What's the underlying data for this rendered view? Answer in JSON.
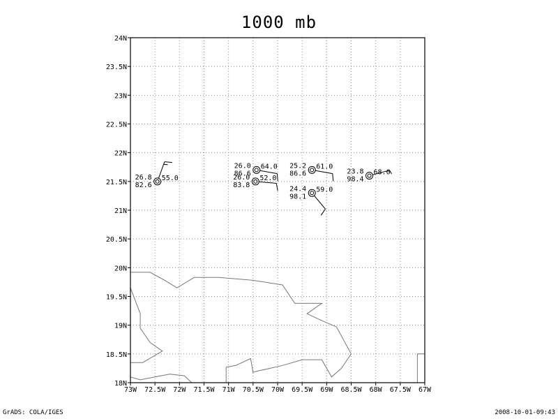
{
  "title": "1000 mb",
  "footer": {
    "left": "GrADS: COLA/IGES",
    "right": "2008-10-01-09:43"
  },
  "axes": {
    "x_ticks": [
      "73W",
      "72.5W",
      "72W",
      "71.5W",
      "71W",
      "70.5W",
      "70W",
      "69.5W",
      "69W",
      "68.5W",
      "68W",
      "67.5W",
      "67W"
    ],
    "y_ticks": [
      "24N",
      "23.5N",
      "23N",
      "22.5N",
      "22N",
      "21.5N",
      "21N",
      "20.5N",
      "20N",
      "19.5N",
      "19N",
      "18.5N",
      "18N"
    ],
    "lon_range": [
      -73,
      -67
    ],
    "lat_range": [
      18,
      24
    ],
    "grid": "dotted"
  },
  "stations": [
    {
      "lon": -72.45,
      "lat": 21.5,
      "temp": "26.8",
      "dewpt": "82.6",
      "pressure": "55.0",
      "wind_dir": 20,
      "wind_kt": 15
    },
    {
      "lon": -70.43,
      "lat": 21.7,
      "temp": "26.0",
      "dewpt": "86.6",
      "pressure": "64.0",
      "wind_dir": 100,
      "wind_kt": 10
    },
    {
      "lon": -70.45,
      "lat": 21.5,
      "temp": "26.0",
      "dewpt": "83.8",
      "pressure": "52.0",
      "wind_dir": 95,
      "wind_kt": 10
    },
    {
      "lon": -69.3,
      "lat": 21.7,
      "temp": "25.2",
      "dewpt": "86.6",
      "pressure": "61.0",
      "wind_dir": 100,
      "wind_kt": 10
    },
    {
      "lon": -69.3,
      "lat": 21.3,
      "temp": "24.4",
      "dewpt": "98.1",
      "pressure": "59.0",
      "wind_dir": 140,
      "wind_kt": 10
    },
    {
      "lon": -68.13,
      "lat": 21.6,
      "temp": "23.8",
      "dewpt": "98.4",
      "pressure": "68.0",
      "wind_dir": 75,
      "wind_kt": 5
    }
  ],
  "coastlines": [
    [
      [
        -73,
        19.92
      ],
      [
        -72.6,
        19.92
      ],
      [
        -72.3,
        19.78
      ],
      [
        -72.05,
        19.65
      ],
      [
        -71.7,
        19.83
      ],
      [
        -71.2,
        19.83
      ],
      [
        -70.5,
        19.78
      ],
      [
        -69.9,
        19.7
      ],
      [
        -69.65,
        19.38
      ],
      [
        -69.1,
        19.38
      ],
      [
        -69.4,
        19.2
      ],
      [
        -69.1,
        19.08
      ],
      [
        -68.8,
        18.97
      ],
      [
        -68.5,
        18.5
      ],
      [
        -68.7,
        18.25
      ],
      [
        -68.9,
        18.1
      ],
      [
        -69.1,
        18.4
      ],
      [
        -69.5,
        18.4
      ],
      [
        -69.9,
        18.3
      ],
      [
        -70.15,
        18.25
      ],
      [
        -70.42,
        18.2
      ],
      [
        -70.5,
        18.18
      ],
      [
        -70.55,
        18.42
      ],
      [
        -70.85,
        18.3
      ],
      [
        -71.05,
        18.27
      ],
      [
        -71.05,
        18
      ]
    ],
    [
      [
        -73,
        19.65
      ],
      [
        -72.8,
        19.2
      ],
      [
        -72.8,
        18.95
      ],
      [
        -72.6,
        18.7
      ],
      [
        -72.35,
        18.55
      ],
      [
        -72.75,
        18.35
      ],
      [
        -73,
        18.35
      ]
    ],
    [
      [
        -73,
        18.1
      ],
      [
        -72.8,
        18.05
      ],
      [
        -72.5,
        18.1
      ],
      [
        -72.2,
        18.15
      ],
      [
        -71.9,
        18.12
      ],
      [
        -71.75,
        18
      ]
    ],
    [
      [
        -67,
        18.5
      ],
      [
        -67.15,
        18.5
      ],
      [
        -67.15,
        18
      ]
    ]
  ]
}
